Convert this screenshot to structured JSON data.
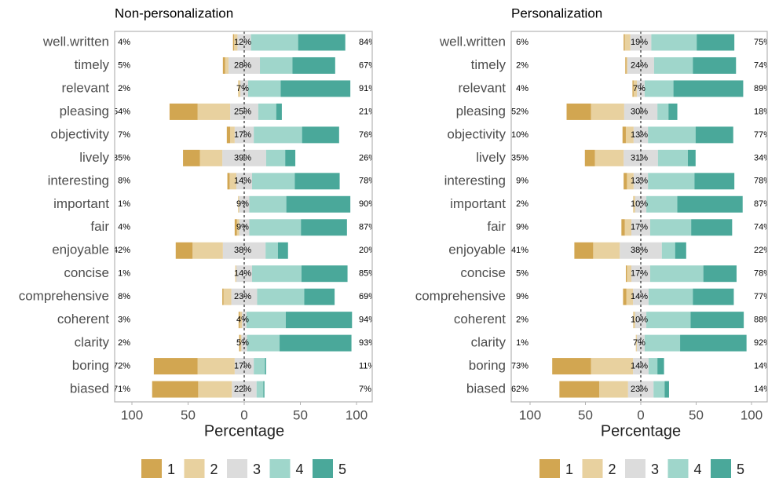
{
  "chart_data": [
    {
      "type": "diverging_bar",
      "title": "Non-personalization",
      "xlabel": "Percentage",
      "categories": [
        "well.written",
        "timely",
        "relevant",
        "pleasing",
        "objectivity",
        "lively",
        "interesting",
        "important",
        "fair",
        "enjoyable",
        "concise",
        "comprehensive",
        "coherent",
        "clarity",
        "boring",
        "biased"
      ],
      "series": [
        {
          "name": "1",
          "color": "#d2a651",
          "values": [
            1,
            2,
            0,
            25,
            3,
            15,
            2,
            0,
            2,
            15,
            0,
            1,
            1,
            1,
            39,
            41
          ]
        },
        {
          "name": "2",
          "color": "#e8d19f",
          "values": [
            3,
            3,
            2,
            29,
            4,
            20,
            6,
            1,
            2,
            27,
            1,
            7,
            2,
            1,
            33,
            30
          ]
        },
        {
          "name": "3",
          "color": "#dcdcdc",
          "values": [
            12,
            28,
            7,
            25,
            17,
            39,
            14,
            9,
            9,
            38,
            14,
            23,
            4,
            5,
            17,
            22
          ]
        },
        {
          "name": "4",
          "color": "#9fd6cb",
          "values": [
            42,
            29,
            29,
            16,
            43,
            17,
            38,
            33,
            46,
            11,
            44,
            42,
            35,
            29,
            10,
            6
          ]
        },
        {
          "name": "5",
          "color": "#4aa89a",
          "values": [
            42,
            38,
            62,
            5,
            33,
            9,
            40,
            57,
            41,
            9,
            41,
            27,
            59,
            64,
            1,
            1
          ]
        }
      ],
      "low_labels": [
        "4%",
        "5%",
        "2%",
        "54%",
        "7%",
        "35%",
        "8%",
        "1%",
        "4%",
        "42%",
        "1%",
        "8%",
        "3%",
        "2%",
        "72%",
        "71%"
      ],
      "neutral_labels": [
        "12%",
        "28%",
        "7%",
        "25%",
        "17%",
        "39%",
        "14%",
        "9%",
        "9%",
        "38%",
        "14%",
        "23%",
        "4%",
        "5%",
        "17%",
        "22%"
      ],
      "high_labels": [
        "84%",
        "67%",
        "91%",
        "21%",
        "76%",
        "26%",
        "78%",
        "90%",
        "87%",
        "20%",
        "85%",
        "69%",
        "94%",
        "93%",
        "11%",
        "7%"
      ],
      "xlim": [
        -100,
        100
      ],
      "xticks": [
        {
          "value": -100,
          "label": "100"
        },
        {
          "value": -50,
          "label": "50"
        },
        0,
        50,
        100
      ]
    },
    {
      "type": "diverging_bar",
      "title": "Personalization",
      "xlabel": "Percentage",
      "categories": [
        "well.written",
        "timely",
        "relevant",
        "pleasing",
        "objectivity",
        "lively",
        "interesting",
        "important",
        "fair",
        "enjoyable",
        "concise",
        "comprehensive",
        "coherent",
        "clarity",
        "boring",
        "biased"
      ],
      "series": [
        {
          "name": "1",
          "color": "#d2a651",
          "values": [
            1,
            1,
            1,
            22,
            3,
            9,
            3,
            0,
            3,
            17,
            1,
            3,
            0,
            0,
            35,
            36
          ]
        },
        {
          "name": "2",
          "color": "#e8d19f",
          "values": [
            5,
            1,
            3,
            30,
            7,
            26,
            6,
            2,
            6,
            24,
            4,
            6,
            2,
            1,
            38,
            26
          ]
        },
        {
          "name": "3",
          "color": "#dcdcdc",
          "values": [
            19,
            24,
            7,
            30,
            13,
            31,
            13,
            10,
            17,
            38,
            17,
            14,
            10,
            7,
            14,
            23
          ]
        },
        {
          "name": "4",
          "color": "#9fd6cb",
          "values": [
            41,
            35,
            26,
            10,
            43,
            27,
            42,
            28,
            37,
            12,
            48,
            40,
            40,
            32,
            8,
            10
          ]
        },
        {
          "name": "5",
          "color": "#4aa89a",
          "values": [
            34,
            39,
            63,
            8,
            34,
            7,
            36,
            59,
            37,
            10,
            30,
            37,
            48,
            60,
            6,
            4
          ]
        }
      ],
      "low_labels": [
        "6%",
        "2%",
        "4%",
        "52%",
        "10%",
        "35%",
        "9%",
        "2%",
        "9%",
        "41%",
        "5%",
        "9%",
        "2%",
        "1%",
        "73%",
        "62%"
      ],
      "neutral_labels": [
        "19%",
        "24%",
        "7%",
        "30%",
        "13%",
        "31%",
        "13%",
        "10%",
        "17%",
        "38%",
        "17%",
        "14%",
        "10%",
        "7%",
        "14%",
        "23%"
      ],
      "high_labels": [
        "75%",
        "74%",
        "89%",
        "18%",
        "77%",
        "34%",
        "78%",
        "87%",
        "74%",
        "22%",
        "78%",
        "77%",
        "88%",
        "92%",
        "14%",
        "14%"
      ],
      "xlim": [
        -100,
        100
      ],
      "xticks": [
        {
          "value": -100,
          "label": "100"
        },
        {
          "value": -50,
          "label": "50"
        },
        0,
        50,
        100
      ]
    }
  ]
}
